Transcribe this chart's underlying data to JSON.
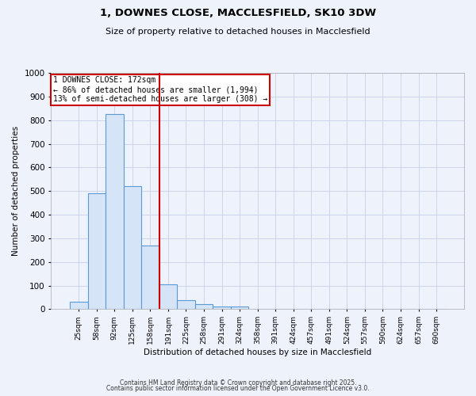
{
  "title_line1": "1, DOWNES CLOSE, MACCLESFIELD, SK10 3DW",
  "title_line2": "Size of property relative to detached houses in Macclesfield",
  "xlabel": "Distribution of detached houses by size in Macclesfield",
  "ylabel": "Number of detached properties",
  "bar_categories": [
    "25sqm",
    "58sqm",
    "92sqm",
    "125sqm",
    "158sqm",
    "191sqm",
    "225sqm",
    "258sqm",
    "291sqm",
    "324sqm",
    "358sqm",
    "391sqm",
    "424sqm",
    "457sqm",
    "491sqm",
    "524sqm",
    "557sqm",
    "590sqm",
    "624sqm",
    "657sqm",
    "690sqm"
  ],
  "bar_values": [
    30,
    490,
    825,
    520,
    270,
    105,
    38,
    20,
    10,
    10,
    0,
    0,
    0,
    0,
    0,
    0,
    0,
    0,
    0,
    0,
    0
  ],
  "bar_color": "#d6e4f7",
  "bar_edge_color": "#5b9bd5",
  "vline_color": "#cc0000",
  "vline_x_pos": 4.5,
  "annotation_text": "1 DOWNES CLOSE: 172sqm\n← 86% of detached houses are smaller (1,994)\n13% of semi-detached houses are larger (308) →",
  "annotation_box_color": "#ffffff",
  "annotation_box_edge_color": "#cc0000",
  "ylim": [
    0,
    1000
  ],
  "yticks": [
    0,
    100,
    200,
    300,
    400,
    500,
    600,
    700,
    800,
    900,
    1000
  ],
  "footnote_line1": "Contains HM Land Registry data © Crown copyright and database right 2025.",
  "footnote_line2": "Contains public sector information licensed under the Open Government Licence v3.0.",
  "bg_color": "#eef2fb",
  "grid_color": "#c8d0e8"
}
